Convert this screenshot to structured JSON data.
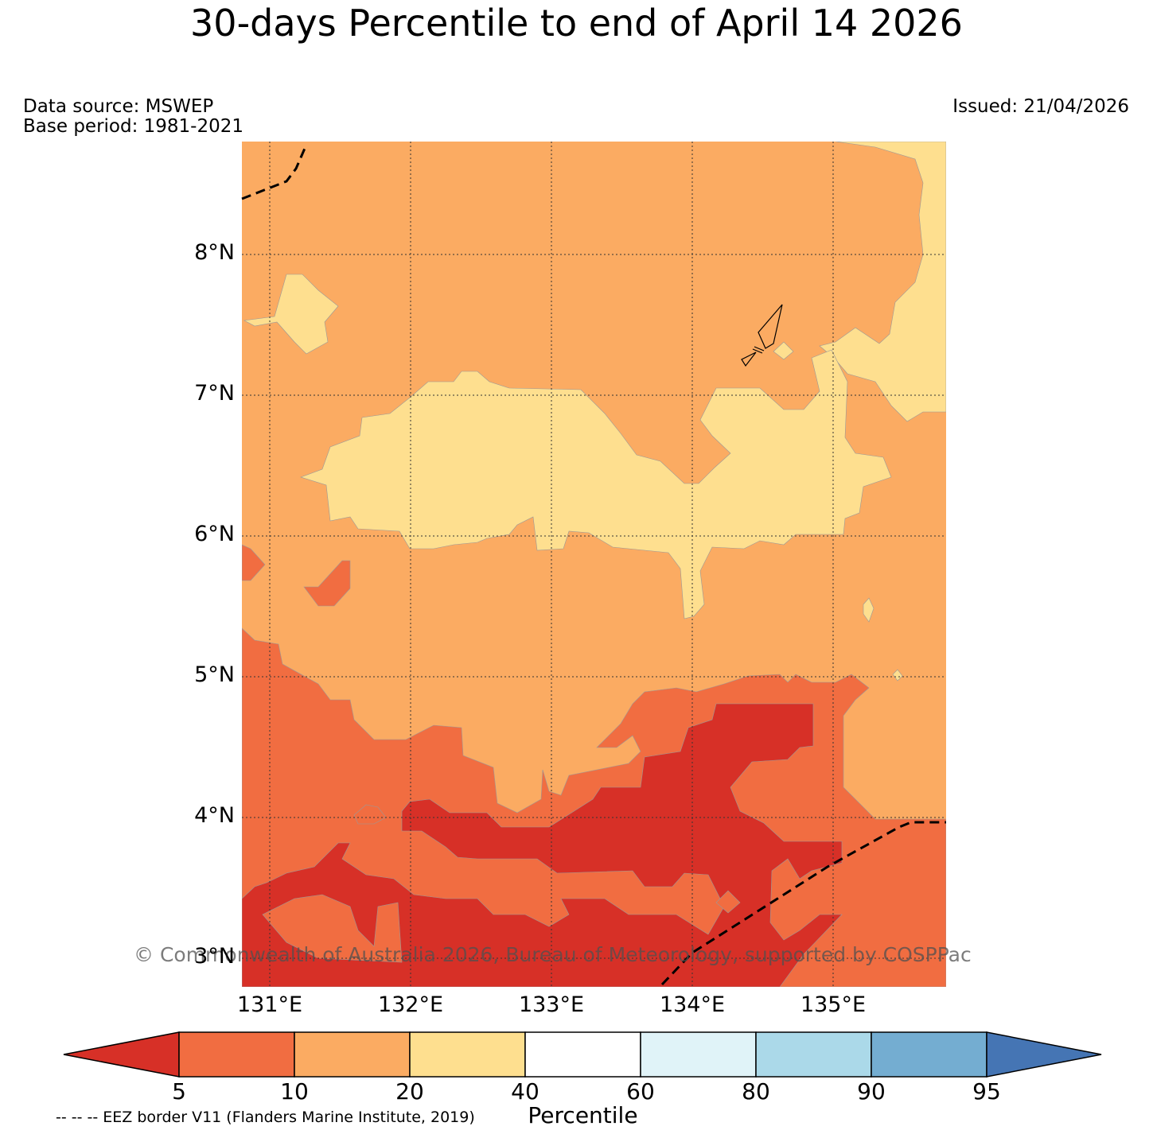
{
  "title": "30-days Percentile to end of April 14 2026",
  "data_source": "Data source: MSWEP",
  "base_period": "Base period: 1981-2021",
  "issued": "Issued: 21/04/2026",
  "copyright": "© Commonwealth of Australia 2026, Bureau of Meteorology, supported by COSPPac",
  "eez_note": "-- -- -- EEZ border V11 (Flanders Marine Institute, 2019)",
  "lat_labels": [
    "8°N",
    "7°N",
    "6°N",
    "5°N",
    "4°N",
    "3°N"
  ],
  "lon_labels": [
    "131°E",
    "132°E",
    "133°E",
    "134°E",
    "135°E"
  ],
  "colorbar": {
    "label": "Percentile",
    "ticks": [
      "5",
      "10",
      "20",
      "40",
      "60",
      "80",
      "90",
      "95"
    ],
    "colors": [
      "#d73027",
      "#f16d41",
      "#fbab62",
      "#fedf8f",
      "#ffffff",
      "#e0f3f8",
      "#abd9e9",
      "#74add1",
      "#4575b4"
    ]
  },
  "legend_colors": {
    "p5_10": "#f16d41",
    "p10_20": "#fbab62",
    "p20_40": "#fedf8f",
    "below_5": "#d73027"
  }
}
